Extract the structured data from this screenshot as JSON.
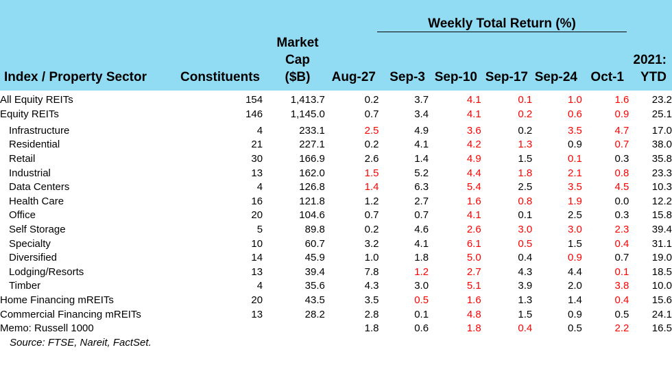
{
  "chart_data": {
    "type": "table",
    "header": {
      "group_title": "Weekly Total Return (%)",
      "index_label": "Index / Property Sector",
      "constituents_label": "Constituents",
      "market_cap_lines": [
        "Market",
        "Cap",
        "($B)"
      ],
      "week_columns": [
        "Aug-27",
        "Sep-3",
        "Sep-10",
        "Sep-17",
        "Sep-24",
        "Oct-1"
      ],
      "ytd_lines": [
        "2021:",
        "YTD"
      ]
    },
    "rows": [
      {
        "name": "All Equity REITs",
        "level": 0,
        "constituents": "154",
        "market_cap": "1,413.7",
        "weekly": [
          "0.2",
          "3.7",
          "4.1",
          "0.1",
          "1.0",
          "1.6"
        ],
        "ytd": "23.2"
      },
      {
        "name": "Equity REITs",
        "level": 0,
        "constituents": "146",
        "market_cap": "1,145.0",
        "weekly": [
          "0.7",
          "3.4",
          "4.1",
          "0.2",
          "0.6",
          "0.9"
        ],
        "ytd": "25.1"
      },
      {
        "name": "Infrastructure",
        "level": 1,
        "constituents": "4",
        "market_cap": "233.1",
        "weekly": [
          "2.5",
          "4.9",
          "3.6",
          "0.2",
          "3.5",
          "4.7"
        ],
        "ytd": "17.0"
      },
      {
        "name": "Residential",
        "level": 1,
        "constituents": "21",
        "market_cap": "227.1",
        "weekly": [
          "0.2",
          "4.1",
          "4.2",
          "1.3",
          "0.9",
          "0.7"
        ],
        "ytd": "38.0"
      },
      {
        "name": "Retail",
        "level": 1,
        "constituents": "30",
        "market_cap": "166.9",
        "weekly": [
          "2.6",
          "1.4",
          "4.9",
          "1.5",
          "0.1",
          "0.3"
        ],
        "ytd": "35.8"
      },
      {
        "name": "Industrial",
        "level": 1,
        "constituents": "13",
        "market_cap": "162.0",
        "weekly": [
          "1.5",
          "5.2",
          "4.4",
          "1.8",
          "2.1",
          "0.8"
        ],
        "ytd": "23.3"
      },
      {
        "name": "Data Centers",
        "level": 1,
        "constituents": "4",
        "market_cap": "126.8",
        "weekly": [
          "1.4",
          "6.3",
          "5.4",
          "2.5",
          "3.5",
          "4.5"
        ],
        "ytd": "10.3"
      },
      {
        "name": "Health Care",
        "level": 1,
        "constituents": "16",
        "market_cap": "121.8",
        "weekly": [
          "1.2",
          "2.7",
          "1.6",
          "0.8",
          "1.9",
          "0.0"
        ],
        "ytd": "12.2"
      },
      {
        "name": "Office",
        "level": 1,
        "constituents": "20",
        "market_cap": "104.6",
        "weekly": [
          "0.7",
          "0.7",
          "4.1",
          "0.1",
          "2.5",
          "0.3"
        ],
        "ytd": "15.8"
      },
      {
        "name": "Self Storage",
        "level": 1,
        "constituents": "5",
        "market_cap": "89.8",
        "weekly": [
          "0.2",
          "4.6",
          "2.6",
          "3.0",
          "3.0",
          "2.3"
        ],
        "ytd": "39.4"
      },
      {
        "name": "Specialty",
        "level": 1,
        "constituents": "10",
        "market_cap": "60.7",
        "weekly": [
          "3.2",
          "4.1",
          "6.1",
          "0.5",
          "1.5",
          "0.4"
        ],
        "ytd": "31.1"
      },
      {
        "name": "Diversified",
        "level": 1,
        "constituents": "14",
        "market_cap": "45.9",
        "weekly": [
          "1.0",
          "1.8",
          "5.0",
          "0.4",
          "0.9",
          "0.7"
        ],
        "ytd": "19.0"
      },
      {
        "name": "Lodging/Resorts",
        "level": 1,
        "constituents": "13",
        "market_cap": "39.4",
        "weekly": [
          "7.8",
          "1.2",
          "2.7",
          "4.3",
          "4.4",
          "0.1"
        ],
        "ytd": "18.5"
      },
      {
        "name": "Timber",
        "level": 1,
        "constituents": "4",
        "market_cap": "35.6",
        "weekly": [
          "4.3",
          "3.0",
          "5.1",
          "3.9",
          "2.0",
          "3.8"
        ],
        "ytd": "10.0"
      },
      {
        "name": "Home Financing mREITs",
        "level": 0,
        "constituents": "20",
        "market_cap": "43.5",
        "weekly": [
          "3.5",
          "0.5",
          "1.6",
          "1.3",
          "1.4",
          "0.4"
        ],
        "ytd": "15.6"
      },
      {
        "name": "Commercial Financing mREITs",
        "level": 0,
        "constituents": "13",
        "market_cap": "28.2",
        "weekly": [
          "2.8",
          "0.1",
          "4.8",
          "1.5",
          "0.9",
          "0.5"
        ],
        "ytd": "24.1"
      },
      {
        "name": "Memo: Russell 1000",
        "level": 0,
        "constituents": "",
        "market_cap": "",
        "weekly": [
          "1.8",
          "0.6",
          "1.8",
          "0.4",
          "0.5",
          "2.2"
        ],
        "ytd": "16.5"
      }
    ],
    "red_cells": [
      [
        0,
        2
      ],
      [
        0,
        3
      ],
      [
        0,
        4
      ],
      [
        0,
        5
      ],
      [
        1,
        2
      ],
      [
        1,
        3
      ],
      [
        1,
        4
      ],
      [
        1,
        5
      ],
      [
        2,
        0
      ],
      [
        2,
        2
      ],
      [
        2,
        4
      ],
      [
        2,
        5
      ],
      [
        3,
        2
      ],
      [
        3,
        3
      ],
      [
        3,
        5
      ],
      [
        4,
        2
      ],
      [
        4,
        4
      ],
      [
        5,
        0
      ],
      [
        5,
        2
      ],
      [
        5,
        3
      ],
      [
        5,
        4
      ],
      [
        5,
        5
      ],
      [
        6,
        0
      ],
      [
        6,
        2
      ],
      [
        6,
        4
      ],
      [
        6,
        5
      ],
      [
        7,
        2
      ],
      [
        7,
        3
      ],
      [
        7,
        4
      ],
      [
        8,
        2
      ],
      [
        9,
        2
      ],
      [
        9,
        3
      ],
      [
        9,
        4
      ],
      [
        9,
        5
      ],
      [
        10,
        2
      ],
      [
        10,
        3
      ],
      [
        10,
        5
      ],
      [
        11,
        2
      ],
      [
        11,
        4
      ],
      [
        12,
        1
      ],
      [
        12,
        2
      ],
      [
        12,
        5
      ],
      [
        13,
        2
      ],
      [
        13,
        5
      ],
      [
        14,
        1
      ],
      [
        14,
        2
      ],
      [
        14,
        5
      ],
      [
        15,
        2
      ],
      [
        16,
        2
      ],
      [
        16,
        3
      ],
      [
        16,
        5
      ]
    ],
    "negative_color": "#ff0000",
    "header_background": "#92dcf3",
    "source": "Source: FTSE, Nareit, FactSet."
  }
}
